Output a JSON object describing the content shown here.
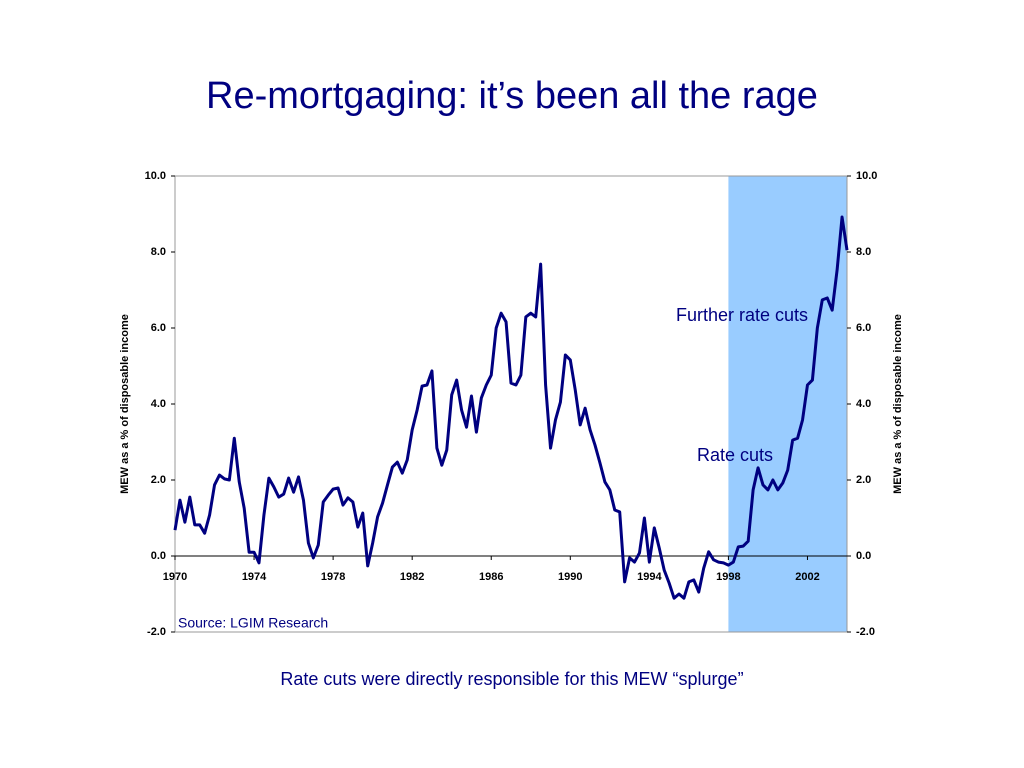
{
  "chart_data": {
    "type": "line",
    "title": "Re-mortgaging: it’s been all the rage",
    "ylabel": "MEW as a % of disposable income",
    "y2label": "MEW as a % of disposable income",
    "annotations": [
      "Further rate cuts",
      "Rate cuts"
    ],
    "source": "Source: LGIM Research",
    "caption": "Rate cuts were directly responsible for this MEW “splurge”",
    "shaded_x_range": [
      1998,
      2004
    ],
    "shade_color": "#99ccff",
    "xlim": [
      1970,
      2004
    ],
    "xticks": [
      1970,
      1974,
      1978,
      1982,
      1986,
      1990,
      1994,
      1998,
      2002
    ],
    "ylim": [
      -2,
      10
    ],
    "yticks": [
      {
        "value": -2,
        "label": "-2.0"
      },
      {
        "value": 0,
        "label": "0.0"
      },
      {
        "value": 2,
        "label": "2.0"
      },
      {
        "value": 4,
        "label": "4.0"
      },
      {
        "value": 6,
        "label": "6.0"
      },
      {
        "value": 8,
        "label": "8.0"
      },
      {
        "value": 10,
        "label": "10.0"
      }
    ],
    "y2lim": [
      -2,
      10
    ],
    "y2ticks": [
      {
        "value": -2,
        "label": "-2.0"
      },
      {
        "value": 0,
        "label": "0.0"
      },
      {
        "value": 2,
        "label": "2.0"
      },
      {
        "value": 4,
        "label": "4.0"
      },
      {
        "value": 6,
        "label": "6.0"
      },
      {
        "value": 8,
        "label": "8.0"
      },
      {
        "value": 10,
        "label": "10.0"
      }
    ],
    "grid": false,
    "x": [
      1970,
      1970.25,
      1970.5,
      1970.75,
      1971,
      1971.25,
      1971.5,
      1971.75,
      1972,
      1972.25,
      1972.5,
      1972.75,
      1973,
      1973.25,
      1973.5,
      1973.75,
      1974,
      1974.25,
      1974.5,
      1974.75,
      1975,
      1975.25,
      1975.5,
      1975.75,
      1976,
      1976.25,
      1976.5,
      1976.75,
      1977,
      1977.25,
      1977.5,
      1977.75,
      1978,
      1978.25,
      1978.5,
      1978.75,
      1979,
      1979.25,
      1979.5,
      1979.75,
      1980,
      1980.25,
      1980.5,
      1980.75,
      1981,
      1981.25,
      1981.5,
      1981.75,
      1982,
      1982.25,
      1982.5,
      1982.75,
      1983,
      1983.25,
      1983.5,
      1983.75,
      1984,
      1984.25,
      1984.5,
      1984.75,
      1985,
      1985.25,
      1985.5,
      1985.75,
      1986,
      1986.25,
      1986.5,
      1986.75,
      1987,
      1987.25,
      1987.5,
      1987.75,
      1988,
      1988.25,
      1988.5,
      1988.75,
      1989,
      1989.25,
      1989.5,
      1989.75,
      1990,
      1990.25,
      1990.5,
      1990.75,
      1991,
      1991.25,
      1991.5,
      1991.75,
      1992,
      1992.25,
      1992.5,
      1992.75,
      1993,
      1993.25,
      1993.5,
      1993.75,
      1994,
      1994.25,
      1994.5,
      1994.75,
      1995,
      1995.25,
      1995.5,
      1995.75,
      1996,
      1996.25,
      1996.5,
      1996.75,
      1997,
      1997.25,
      1997.5,
      1997.75,
      1998,
      1998.25,
      1998.5,
      1998.75,
      1999,
      1999.25,
      1999.5,
      1999.75,
      2000,
      2000.25,
      2000.5,
      2000.75,
      2001,
      2001.25,
      2001.5,
      2001.75,
      2002,
      2002.25,
      2002.5,
      2002.75,
      2003,
      2003.25,
      2003.5,
      2003.75,
      2004
    ],
    "series": [
      {
        "name": "MEW",
        "color": "#000080",
        "values": [
          0.68,
          1.47,
          0.89,
          1.55,
          0.82,
          0.82,
          0.6,
          1.08,
          1.87,
          2.13,
          2.03,
          2.0,
          3.1,
          1.95,
          1.26,
          0.1,
          0.1,
          -0.18,
          1.08,
          2.05,
          1.82,
          1.55,
          1.63,
          2.05,
          1.68,
          2.08,
          1.47,
          0.34,
          -0.05,
          0.29,
          1.42,
          1.6,
          1.76,
          1.79,
          1.34,
          1.53,
          1.42,
          0.76,
          1.13,
          -0.26,
          0.34,
          1.03,
          1.39,
          1.87,
          2.34,
          2.47,
          2.18,
          2.53,
          3.32,
          3.84,
          4.47,
          4.5,
          4.87,
          2.84,
          2.39,
          2.79,
          4.24,
          4.63,
          3.84,
          3.39,
          4.21,
          3.26,
          4.16,
          4.5,
          4.76,
          6.0,
          6.39,
          6.16,
          4.55,
          4.5,
          4.76,
          6.29,
          6.39,
          6.29,
          7.68,
          4.5,
          2.84,
          3.58,
          4.05,
          5.29,
          5.16,
          4.37,
          3.45,
          3.89,
          3.32,
          2.92,
          2.45,
          1.95,
          1.74,
          1.21,
          1.16,
          -0.68,
          -0.05,
          -0.16,
          0.08,
          1.0,
          -0.16,
          0.74,
          0.21,
          -0.37,
          -0.71,
          -1.11,
          -1.0,
          -1.11,
          -0.68,
          -0.63,
          -0.95,
          -0.32,
          0.11,
          -0.1,
          -0.16,
          -0.18,
          -0.24,
          -0.16,
          0.24,
          0.26,
          0.39,
          1.74,
          2.32,
          1.87,
          1.74,
          2.0,
          1.74,
          1.92,
          2.26,
          3.05,
          3.1,
          3.58,
          4.5,
          4.63,
          6.0,
          6.74,
          6.79,
          6.47,
          7.53,
          8.92,
          8.05
        ]
      }
    ]
  }
}
